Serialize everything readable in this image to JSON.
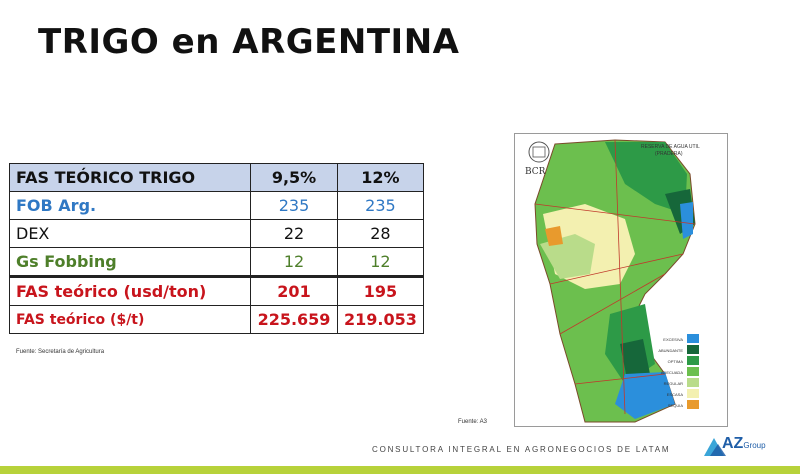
{
  "title": "TRIGO en ARGENTINA",
  "table": {
    "header": {
      "label": "FAS TEÓRICO TRIGO",
      "col1": "9,5%",
      "col2": "12%"
    },
    "rows": [
      {
        "label": "FOB Arg.",
        "col1": "235",
        "col2": "235"
      },
      {
        "label": "DEX",
        "col1": "22",
        "col2": "28"
      },
      {
        "label": "Gs Fobbing",
        "col1": "12",
        "col2": "12"
      },
      {
        "label": "FAS teórico (usd/ton)",
        "col1": "201",
        "col2": "195"
      },
      {
        "label": "FAS teórico ($/t)",
        "col1": "225.659",
        "col2": "219.053"
      }
    ]
  },
  "source_left": "Fuente: Secretaría de Agricultura",
  "map": {
    "logo": "BCR",
    "title_line1": "RESERVA DE AGUA UTIL",
    "title_line2": "(PRADERA)",
    "legend": [
      {
        "label": "EXCESIVA",
        "color": "#2b8fdc"
      },
      {
        "label": "ABUNDANTE",
        "color": "#16673a"
      },
      {
        "label": "OPTIMA",
        "color": "#2d9a47"
      },
      {
        "label": "ADECUADA",
        "color": "#6cbf4e"
      },
      {
        "label": "REGULAR",
        "color": "#b9dc8a"
      },
      {
        "label": "ESCASA",
        "color": "#f3f0b0"
      },
      {
        "label": "SEQUIA",
        "color": "#e89a2d"
      }
    ]
  },
  "source_map": "Fuente: A3",
  "footer": "CONSULTORA INTEGRAL EN AGRONEGOCIOS DE LATAM",
  "brand": {
    "name": "AZ",
    "suffix": "Group"
  }
}
